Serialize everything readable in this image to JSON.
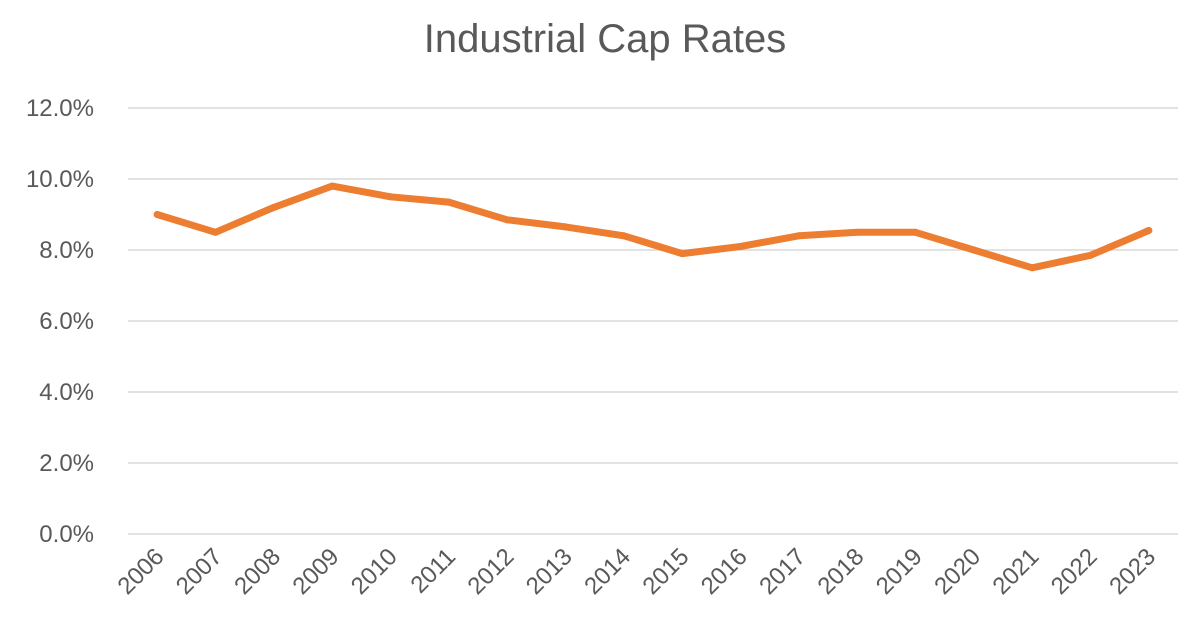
{
  "chart_data": {
    "type": "line",
    "title": "Industrial Cap Rates",
    "xlabel": "",
    "ylabel": "",
    "categories": [
      "2006",
      "2007",
      "2008",
      "2009",
      "2010",
      "2011",
      "2012",
      "2013",
      "2014",
      "2015",
      "2016",
      "2017",
      "2018",
      "2019",
      "2020",
      "2021",
      "2022",
      "2023"
    ],
    "series": [
      {
        "name": "Industrial Cap Rate",
        "color": "#ed7d31",
        "values": [
          9.0,
          8.5,
          9.2,
          9.8,
          9.5,
          9.35,
          8.85,
          8.65,
          8.4,
          7.9,
          8.1,
          8.4,
          8.5,
          8.5,
          8.0,
          7.5,
          7.85,
          8.55
        ]
      }
    ],
    "ylim": [
      0,
      12
    ],
    "ytick_values": [
      0,
      2,
      4,
      6,
      8,
      10,
      12
    ],
    "ytick_labels": [
      "0.0%",
      "2.0%",
      "4.0%",
      "6.0%",
      "8.0%",
      "10.0%",
      "12.0%"
    ],
    "grid": true,
    "legend": "none"
  }
}
